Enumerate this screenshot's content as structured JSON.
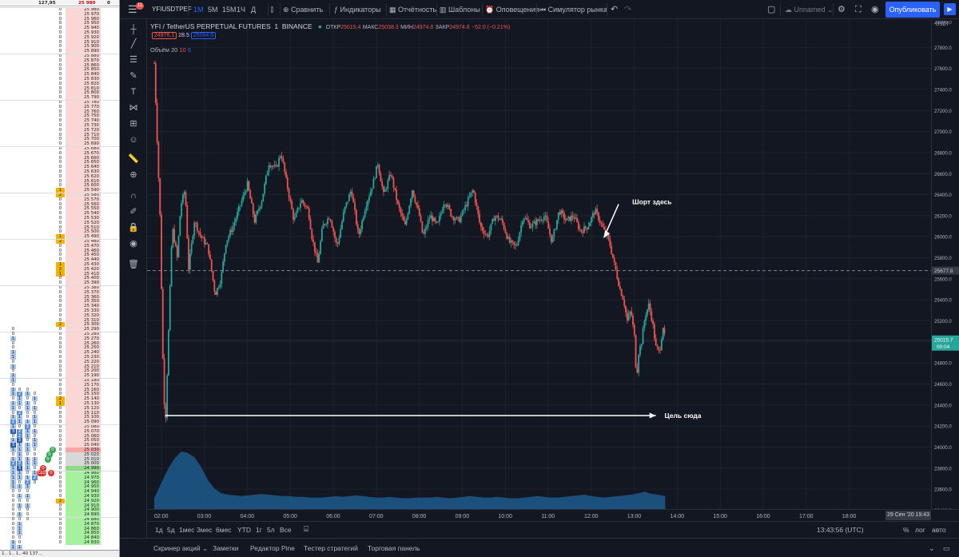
{
  "dom": {
    "header_left": "127,95",
    "header_price": "25 980",
    "header_right": "0",
    "footer_left": "1.. 1.. 1..",
    "footer_mid": "40 137...",
    "ask_color": "#f8d7d4",
    "bid_color": "#a6f0a0",
    "best_ask_color": "#f5a7a7",
    "best_bid_color": "#8fd88a",
    "spread_color": "#d8d8d8",
    "price_start": 25980,
    "price_step": 10,
    "price_rows": 116,
    "best_ask": 25030,
    "best_bid": 24990,
    "volume_highlights": [
      25590,
      25580,
      25490,
      25480,
      25430,
      25420,
      25410,
      25300,
      25140,
      25130,
      24920,
      24760,
      24800
    ],
    "left_columns": [
      {
        "top_price": 25290,
        "values": [
          "0",
          "0",
          "1",
          "0",
          "0",
          "1",
          "1",
          "0",
          "1",
          "0",
          "1",
          "1",
          "0",
          "1",
          "1",
          "0",
          "1",
          "1",
          "0",
          "1",
          "2",
          "1",
          "3",
          "0",
          "1",
          "3",
          "1",
          "0",
          "1",
          "2",
          "1",
          "1",
          "1",
          "1",
          "1",
          "0",
          "0",
          "0",
          "0",
          "0",
          "0",
          "0",
          "0",
          "0",
          "0",
          "0",
          "1",
          "1",
          "0",
          "0",
          "1",
          "0",
          "0",
          "1",
          "1",
          "0",
          "1",
          "1",
          "0",
          "0",
          "1",
          "1",
          "1",
          "1",
          "1",
          "0",
          "0",
          "1",
          "1",
          "1",
          "1"
        ]
      },
      {
        "top_price": 25160,
        "values": [
          "0",
          "2",
          "1",
          "1",
          "0",
          "2",
          "1",
          "1",
          "0",
          "2",
          "2",
          "3",
          "1",
          "1",
          "1",
          "1",
          "2",
          "3",
          "1",
          "1",
          "0",
          "1",
          "0",
          "1",
          "0",
          "1",
          "0",
          "1",
          "0",
          "1",
          "1",
          "1",
          "0",
          "0",
          "1",
          "1",
          "0",
          "1",
          "1",
          "0",
          "0",
          "1",
          "0",
          "1",
          "0",
          "1",
          "1",
          "1",
          "1",
          "1",
          "1",
          "1",
          "1",
          "1",
          "1",
          "0",
          "1",
          "1",
          "0",
          "1"
        ]
      },
      {
        "top_price": 25160,
        "values": [
          "0",
          "1",
          "0",
          "1",
          "1",
          "0",
          "0",
          "1",
          "2",
          "1",
          "1",
          "0",
          "1",
          "1",
          "0",
          "1",
          "1",
          "1",
          "0",
          "1",
          "2",
          "1",
          "0",
          "1",
          "0",
          "1",
          "0",
          "0",
          "0"
        ]
      },
      {
        "top_price": 25150,
        "values": [
          "0",
          "1",
          "0",
          "1",
          "0",
          "1",
          "1",
          "0",
          "1",
          "0",
          "1",
          "1",
          "0",
          "0",
          "1",
          "1",
          "0",
          "1",
          "2",
          "0"
        ]
      }
    ],
    "order_bubbles": [
      {
        "label": "0",
        "price": 25030
      },
      {
        "label": "0",
        "price": 25020
      },
      {
        "label": "0",
        "price": 25010
      },
      {
        "label": "0",
        "price": 24990
      },
      {
        "label": "CLO",
        "price": 24980
      },
      {
        "label": "0",
        "price": 24980
      }
    ]
  },
  "topbar": {
    "badge": "11",
    "symbol": "YFIUSDTPEF",
    "intervals": [
      "1М",
      "5М",
      "15М",
      "1Ч",
      "Д"
    ],
    "compare": "Сравнить",
    "indicators": "Индикаторы",
    "reports": "Отчётность",
    "templates": "Шаблоны",
    "alerts": "Оповещения",
    "replay": "Симулятор рынка",
    "layout_name": "Unnamed",
    "publish": "Опубликовать"
  },
  "legend": {
    "title": "YFI / TetherUS PERPETUAL FUTURES",
    "interval": "1",
    "exchange": "BINANCE",
    "open_label": "ОТКР",
    "open": "25015.4",
    "high_label": "МАКС",
    "high": "25038.3",
    "low_label": "МИН",
    "low": "24974.8",
    "close_label": "ЗАКР",
    "close": "24974.8",
    "change": "−52.0 (−0.21%)",
    "bid_box": "24976.1",
    "spread": "28.5",
    "ask_box": "25004.6",
    "volume_label": "Объём",
    "volume_period": "20",
    "volume_v1": "10",
    "volume_v2": "6"
  },
  "annotations": {
    "short": "Шорт здесь",
    "target": "Цель сюда"
  },
  "price_axis": {
    "currency": "USDT",
    "crosshair_label": "25677.8",
    "last_price": "25015.7",
    "countdown": "00:04",
    "top_clip": "28000.0"
  },
  "time_axis": {
    "crosshair_label": "29 Сен '20  19:43"
  },
  "bottombar": {
    "ranges": [
      "1д",
      "5д",
      "1мес",
      "3мес",
      "6мес",
      "YTD",
      "1г",
      "5л",
      "Все"
    ],
    "time": "13:43:56 (UTC)",
    "pct": "%",
    "log": "лог",
    "auto": "авто"
  },
  "panels": [
    "Скринер акций",
    "Заметки",
    "Редактор Pine",
    "Тестер стратегий",
    "Торговая панель"
  ],
  "colors": {
    "bg": "#131722",
    "up": "#26a69a",
    "down": "#ef5350",
    "accent": "#2962ff",
    "volume": "#1e5a8c",
    "text": "#b2b5be"
  },
  "chart_data": {
    "type": "candlestick",
    "symbol": "YFIUSDTPERP",
    "exchange": "BINANCE",
    "interval": "1m",
    "x_ticks": [
      "02:00",
      "03:00",
      "04:00",
      "05:00",
      "06:00",
      "07:00",
      "08:00",
      "09:00",
      "10:00",
      "11:00",
      "12:00",
      "13:00",
      "14:00",
      "15:00",
      "16:00",
      "17:00",
      "18:00"
    ],
    "y_ticks": [
      23400,
      23600,
      23800,
      24000,
      24200,
      24400,
      24600,
      24800,
      25000,
      25200,
      25400,
      25600,
      25800,
      26000,
      26200,
      26400,
      26600,
      26800,
      27000,
      27200,
      27400,
      27600,
      27800
    ],
    "ylim": [
      23350,
      28000
    ],
    "path_times": [
      "01:50",
      "01:58",
      "02:03",
      "02:06",
      "02:10",
      "02:15",
      "02:22",
      "02:27",
      "02:33",
      "02:38",
      "02:46",
      "02:55",
      "03:05",
      "03:15",
      "03:23",
      "03:30",
      "03:40",
      "03:50",
      "04:00",
      "04:10",
      "04:20",
      "04:30",
      "04:40",
      "04:47",
      "04:55",
      "05:05",
      "05:15",
      "05:25",
      "05:30",
      "05:38",
      "05:45",
      "05:55",
      "06:05",
      "06:15",
      "06:25",
      "06:35",
      "06:45",
      "06:55",
      "07:02",
      "07:10",
      "07:20",
      "07:30",
      "07:40",
      "07:50",
      "08:00",
      "08:05",
      "08:15",
      "08:25",
      "08:35",
      "08:45",
      "08:55",
      "09:05",
      "09:15",
      "09:25",
      "09:35",
      "09:45",
      "09:55",
      "10:05",
      "10:15",
      "10:25",
      "10:35",
      "10:45",
      "10:55",
      "11:05",
      "11:15",
      "11:25",
      "11:35",
      "11:45",
      "11:55",
      "12:05",
      "12:12",
      "12:18",
      "12:25",
      "12:30",
      "12:35",
      "12:40",
      "12:45",
      "12:50",
      "12:55",
      "13:00",
      "13:03",
      "13:06",
      "13:10",
      "13:15",
      "13:20",
      "13:25",
      "13:30",
      "13:35",
      "13:40",
      "13:43"
    ],
    "path_prices": [
      27650,
      26200,
      24500,
      24300,
      25100,
      26100,
      25800,
      26300,
      26450,
      25700,
      26150,
      26000,
      25900,
      25450,
      25600,
      25950,
      26100,
      26300,
      26500,
      26150,
      26350,
      26700,
      26650,
      26800,
      26500,
      26150,
      26350,
      26250,
      26000,
      25750,
      26100,
      26200,
      25900,
      26250,
      26450,
      26000,
      26300,
      26500,
      26700,
      26400,
      26600,
      26300,
      26100,
      26450,
      26200,
      26000,
      26200,
      26100,
      26350,
      26200,
      26150,
      26300,
      26450,
      26100,
      26000,
      26200,
      26150,
      25950,
      25900,
      26200,
      26100,
      26150,
      26200,
      25950,
      26250,
      26150,
      26200,
      26050,
      26100,
      26250,
      26150,
      26050,
      25950,
      25800,
      25650,
      25500,
      25400,
      25200,
      25300,
      25050,
      24650,
      24900,
      25000,
      25250,
      25350,
      25200,
      24950,
      24900,
      25150,
      25000
    ],
    "annotation_target_price": 24300,
    "crosshair_price": 25677.8,
    "last_price": 25015.7,
    "volume_profile": [
      15,
      35,
      55,
      70,
      80,
      78,
      72,
      58,
      40,
      28,
      22,
      20,
      19,
      18,
      19,
      20,
      21,
      20,
      19,
      18,
      18,
      17,
      17,
      16,
      16,
      16,
      17,
      18,
      17,
      18,
      19,
      18,
      17,
      16,
      16,
      17,
      16,
      15,
      15,
      16,
      16,
      16,
      17,
      16,
      15,
      16,
      17,
      18,
      17,
      16,
      16,
      17,
      16,
      15,
      15,
      16,
      17,
      18,
      17,
      16,
      16,
      17,
      18,
      19,
      20,
      18,
      17,
      16,
      17,
      18,
      19,
      20,
      22,
      24,
      21,
      20,
      18
    ]
  }
}
